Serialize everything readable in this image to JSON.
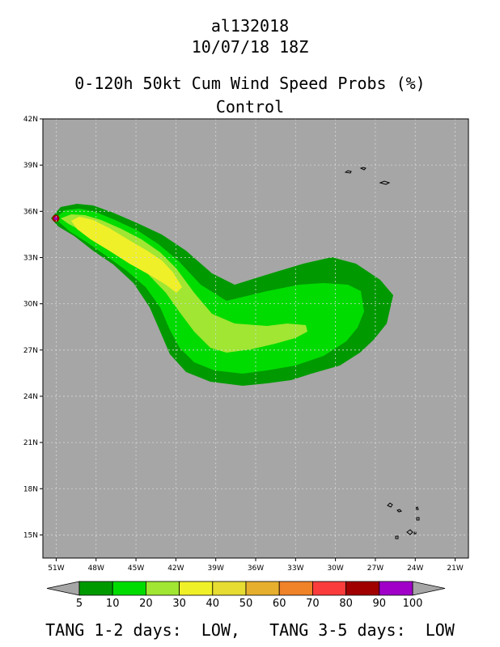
{
  "header": {
    "storm_id": "al132018",
    "datetime": "10/07/18 18Z",
    "product": "0-120h 50kt Cum Wind Speed Probs (%)",
    "model": "Control"
  },
  "axes": {
    "lat_labels": [
      "15N",
      "18N",
      "21N",
      "24N",
      "27N",
      "30N",
      "33N",
      "36N",
      "39N",
      "42N"
    ],
    "lon_labels": [
      "51W",
      "48W",
      "45W",
      "42W",
      "39W",
      "36W",
      "33W",
      "30W",
      "27W",
      "24W",
      "21W"
    ],
    "lat_range": [
      13.5,
      42
    ],
    "lon_range": [
      -52,
      -20
    ],
    "grid": true
  },
  "colorbar": {
    "labels": [
      "5",
      "10",
      "20",
      "30",
      "40",
      "50",
      "60",
      "70",
      "80",
      "90",
      "100"
    ],
    "colors": [
      "#009a00",
      "#00dc00",
      "#a0e632",
      "#f0f028",
      "#e6dc32",
      "#e6af2d",
      "#f08228",
      "#fa3c3c",
      "#a00000",
      "#a000c8"
    ]
  },
  "colors": {
    "background": "#a6a6a6",
    "p5": "#009a00",
    "p10": "#00dc00",
    "p20": "#a0e632",
    "p30": "#f0f028",
    "p80": "#a00000",
    "p90": "#a000c8"
  },
  "footer": {
    "text": "TANG 1-2 days:  LOW,   TANG 3-5 days:  LOW"
  }
}
